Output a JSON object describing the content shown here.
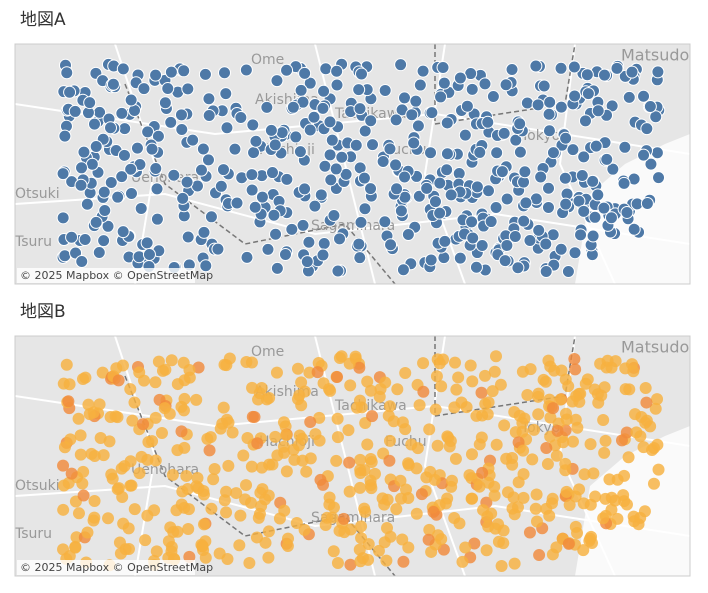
{
  "maps": [
    {
      "title": "地図A",
      "attribution": "© 2025 Mapbox © OpenStreetMap",
      "place_labels": [
        "Ome",
        "Matsudo",
        "Akishima",
        "Tachikawa",
        "Hachioji",
        "Fuchu",
        "Uenohara",
        "Otsuki",
        "Tsuru",
        "Sagamihara",
        "Tokyo"
      ]
    },
    {
      "title": "地図B",
      "attribution": "© 2025 Mapbox © OpenStreetMap",
      "place_labels": [
        "Ome",
        "Matsudo",
        "Akishima",
        "Tachikawa",
        "Hachioji",
        "Fuchu",
        "Uenohara",
        "Otsuki",
        "Tsuru",
        "Sagamihara",
        "Tokyo"
      ]
    }
  ]
}
